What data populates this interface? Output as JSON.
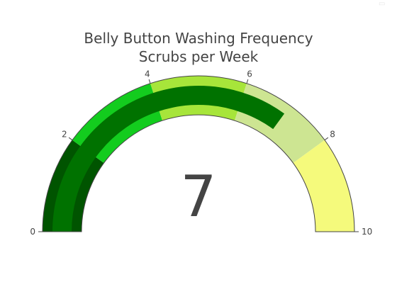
{
  "chart_data": {
    "type": "gauge",
    "title_lines": [
      "Belly Button Washing Frequency",
      "Scrubs per Week"
    ],
    "value": 7,
    "value_label": "7",
    "range": [
      0,
      10
    ],
    "ticks": [
      {
        "value": 0,
        "label": "0"
      },
      {
        "value": 2,
        "label": "2"
      },
      {
        "value": 4,
        "label": "4"
      },
      {
        "value": 6,
        "label": "6"
      },
      {
        "value": 8,
        "label": "8"
      },
      {
        "value": 10,
        "label": "10"
      }
    ],
    "steps": [
      {
        "range": [
          0,
          2
        ],
        "color": "#005400"
      },
      {
        "range": [
          2,
          4
        ],
        "color": "#13cc1e"
      },
      {
        "range": [
          4,
          6
        ],
        "color": "#a7e53a"
      },
      {
        "range": [
          6,
          8
        ],
        "color": "#cde592"
      },
      {
        "range": [
          8,
          10
        ],
        "color": "#f5fa7c"
      }
    ],
    "bar_color": "#007200",
    "border_color": "#444444"
  }
}
